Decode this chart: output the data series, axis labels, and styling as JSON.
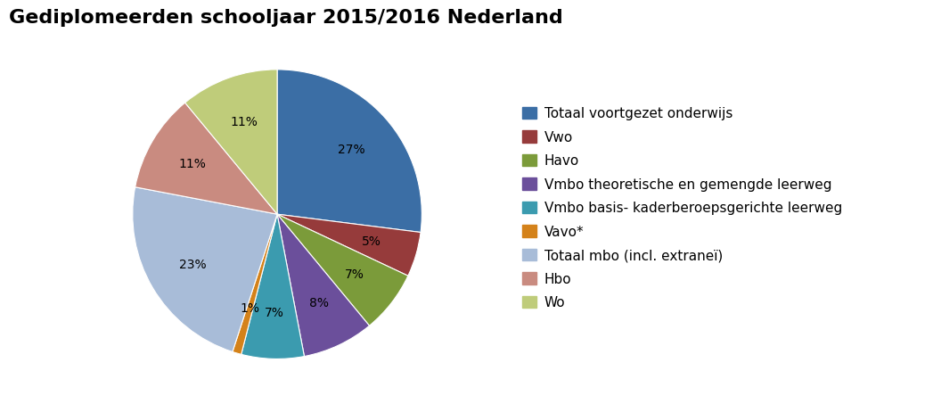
{
  "title": "Gediplomeerden schooljaar 2015/2016 Nederland",
  "slices": [
    27,
    5,
    7,
    8,
    7,
    1,
    23,
    11,
    11
  ],
  "labels": [
    "Totaal voortgezet onderwijs",
    "Vwo",
    "Havo",
    "Vmbo theoretische en gemengde leerweg",
    "Vmbo basis- kaderberoepsgerichte leerweg",
    "Vavo*",
    "Totaal mbo (incl. extraneï)",
    "Hbo",
    "Wo"
  ],
  "colors": [
    "#3B6EA5",
    "#963B3B",
    "#7B9B3A",
    "#6B4F9B",
    "#3B9BAF",
    "#D4821A",
    "#A8BCD8",
    "#C98B80",
    "#BFCC7A"
  ],
  "pct_labels": [
    "27%",
    "5%",
    "7%",
    "8%",
    "7%",
    "1%",
    "23%",
    "11%",
    "11%"
  ],
  "title_fontsize": 16,
  "legend_fontsize": 11
}
